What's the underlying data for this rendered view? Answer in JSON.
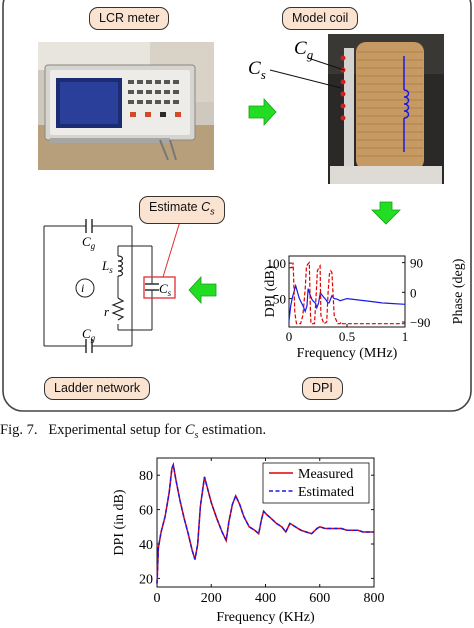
{
  "labels": {
    "lcr_meter": "LCR meter",
    "model_coil": "Model coil",
    "estimate_prefix": "Estimate ",
    "estimate_sym": "C",
    "estimate_sub": "s",
    "ladder_network": "Ladder network",
    "dpi": "DPI",
    "photo_cg": "C",
    "photo_cg_sub": "g",
    "photo_cs": "C",
    "photo_cs_sub": "s"
  },
  "circuit": {
    "cg_top": "C",
    "cg_top_sub": "g",
    "cg_bottom": "C",
    "cg_bottom_sub": "g",
    "ls": "L",
    "ls_sub": "s",
    "r": "r",
    "cs": "C",
    "cs_sub": "s",
    "source": "i"
  },
  "caption": {
    "prefix": "Fig. 7.",
    "text": "Experimental setup for",
    "sym": "C",
    "sub": "s",
    "suffix": "estimation."
  },
  "colors": {
    "panel_border": "#444444",
    "tag_fill": "#fbe3d2",
    "arrow_green": "#22dd22",
    "measured_red": "#e00000",
    "estimated_blue": "#1a1ae6",
    "estimate_box_red": "#e03030"
  },
  "chart_data": [
    {
      "type": "line",
      "title": "",
      "xlabel": "Frequency (MHz)",
      "ylabel": "DPI (dB)",
      "y2label": "Phase (deg)",
      "xlim": [
        0,
        1
      ],
      "ylim": [
        10,
        110
      ],
      "y2lim": [
        -105,
        110
      ],
      "x_ticks": [
        "0",
        "0.5",
        "1"
      ],
      "y_ticks": [
        "50",
        "100"
      ],
      "y2_ticks": [
        "90",
        "0",
        "−90"
      ],
      "series": [
        {
          "color": "#1a1ae6",
          "x": [
            0,
            0.015,
            0.03,
            0.05,
            0.058,
            0.075,
            0.09,
            0.12,
            0.14,
            0.155,
            0.165,
            0.185,
            0.2,
            0.23,
            0.24,
            0.255,
            0.27,
            0.3,
            0.32,
            0.335,
            0.345,
            0.37,
            0.39,
            0.42,
            0.44,
            0.5,
            0.6,
            0.7,
            0.8,
            0.9,
            1.0
          ],
          "y": [
            18,
            40,
            52,
            64,
            68,
            58,
            50,
            40,
            32,
            40,
            64,
            54,
            48,
            43,
            37,
            44,
            58,
            52,
            48,
            44,
            44,
            54,
            50,
            49,
            47,
            50,
            48,
            46,
            44,
            43,
            42
          ]
        },
        {
          "color": "#e00000",
          "dashed": true,
          "x": [
            0,
            0.025,
            0.035,
            0.05,
            0.058,
            0.065,
            0.1,
            0.12,
            0.14,
            0.15,
            0.16,
            0.175,
            0.185,
            0.19,
            0.22,
            0.235,
            0.245,
            0.258,
            0.268,
            0.275,
            0.3,
            0.325,
            0.337,
            0.348,
            0.36,
            0.37,
            0.39,
            0.42,
            0.44,
            0.45,
            0.46,
            0.465,
            0.48,
            0.5,
            1.0
          ],
          "y2": [
            75,
            75,
            90,
            -60,
            -80,
            -95,
            -95,
            -70,
            10,
            75,
            85,
            90,
            -70,
            -95,
            -95,
            0,
            65,
            75,
            80,
            -70,
            -95,
            -90,
            0,
            55,
            65,
            60,
            -70,
            -95,
            -95,
            -90,
            -95,
            -95,
            -95,
            -95,
            -95
          ]
        }
      ]
    },
    {
      "type": "line",
      "title": "",
      "xlabel": "Frequency (KHz)",
      "ylabel": "DPI (in dB)",
      "xlim": [
        0,
        800
      ],
      "ylim": [
        15,
        90
      ],
      "x_ticks": [
        "0",
        "200",
        "400",
        "600",
        "800"
      ],
      "y_ticks": [
        "20",
        "40",
        "60",
        "80"
      ],
      "legend_position": "top-right",
      "series": [
        {
          "name": "Measured",
          "color": "#e00000",
          "x": [
            0,
            5,
            15,
            30,
            45,
            55,
            60,
            70,
            85,
            100,
            115,
            130,
            140,
            150,
            160,
            175,
            185,
            200,
            220,
            240,
            255,
            265,
            278,
            290,
            305,
            320,
            340,
            360,
            375,
            385,
            393,
            405,
            420,
            440,
            460,
            475,
            490,
            510,
            530,
            550,
            570,
            590,
            600,
            620,
            640,
            660,
            680,
            700,
            720,
            740,
            760,
            780,
            800
          ],
          "y": [
            17,
            38,
            47,
            56,
            70,
            84,
            86,
            77,
            65,
            55,
            46,
            36,
            31,
            40,
            62,
            79,
            73,
            64,
            55,
            47,
            42,
            53,
            63,
            68,
            63,
            56,
            50,
            48,
            46,
            54,
            59,
            57,
            55,
            52,
            50,
            47,
            52,
            50,
            48,
            47,
            46,
            49,
            50,
            49,
            49,
            49,
            49,
            48,
            48,
            48,
            47,
            47,
            47
          ]
        },
        {
          "name": "Estimated",
          "color": "#1a1ae6",
          "dashed": true,
          "x": [
            0,
            5,
            15,
            30,
            45,
            55,
            60,
            70,
            85,
            100,
            115,
            130,
            140,
            150,
            160,
            175,
            185,
            200,
            220,
            240,
            255,
            265,
            278,
            290,
            305,
            320,
            340,
            360,
            375,
            385,
            393,
            405,
            420,
            440,
            460,
            475,
            490,
            510,
            530,
            550,
            570,
            590,
            600,
            620,
            640,
            660,
            680,
            700,
            720,
            740,
            760,
            780,
            800
          ],
          "y": [
            17,
            38,
            47,
            56,
            70,
            84,
            86,
            77,
            65,
            55,
            46,
            36,
            31,
            40,
            62,
            79,
            73,
            64,
            55,
            47,
            42,
            53,
            63,
            68,
            63,
            56,
            50,
            48,
            46,
            54,
            59,
            57,
            55,
            52,
            50,
            47,
            52,
            50,
            48,
            47,
            46,
            49,
            50,
            49,
            49,
            49,
            49,
            48,
            48,
            48,
            47,
            47,
            47
          ]
        }
      ]
    }
  ]
}
